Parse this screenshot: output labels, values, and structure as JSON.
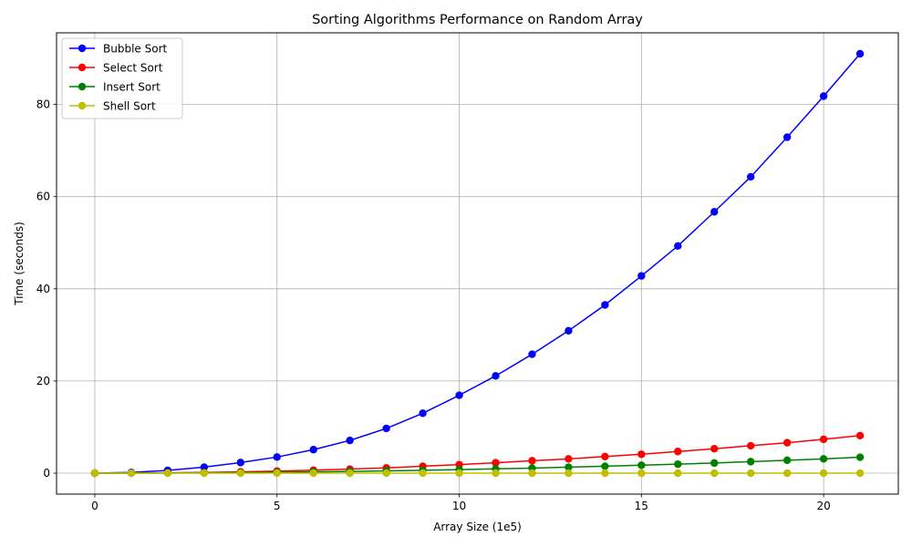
{
  "chart_data": {
    "type": "line",
    "title": "Sorting Algorithms Performance on Random Array",
    "xlabel": "Array Size (1e5)",
    "ylabel": "Time (seconds)",
    "xlim": [
      -1.05,
      22.05
    ],
    "ylim": [
      -4.55,
      95.55
    ],
    "xticks": [
      0,
      5,
      10,
      15,
      20
    ],
    "yticks": [
      0,
      20,
      40,
      60,
      80
    ],
    "grid": true,
    "legend_position": "top-left",
    "x": [
      0,
      1,
      2,
      3,
      4,
      5,
      6,
      7,
      8,
      9,
      10,
      11,
      12,
      13,
      14,
      15,
      16,
      17,
      18,
      19,
      20,
      21
    ],
    "series": [
      {
        "name": "Bubble Sort",
        "color": "#0000ff",
        "values": [
          0,
          0.15,
          0.6,
          1.3,
          2.3,
          3.5,
          5.1,
          7.1,
          9.7,
          13.0,
          16.9,
          21.1,
          25.8,
          30.9,
          36.5,
          42.8,
          49.3,
          56.7,
          64.3,
          72.9,
          81.8,
          91.0
        ]
      },
      {
        "name": "Select Sort",
        "color": "#ff0000",
        "values": [
          0,
          0.02,
          0.07,
          0.15,
          0.28,
          0.45,
          0.65,
          0.88,
          1.15,
          1.5,
          1.85,
          2.25,
          2.7,
          3.1,
          3.6,
          4.1,
          4.7,
          5.3,
          5.95,
          6.6,
          7.35,
          8.15
        ]
      },
      {
        "name": "Insert Sort",
        "color": "#008000",
        "values": [
          0,
          0.01,
          0.03,
          0.07,
          0.12,
          0.2,
          0.28,
          0.38,
          0.5,
          0.63,
          0.77,
          0.93,
          1.1,
          1.3,
          1.5,
          1.72,
          1.95,
          2.2,
          2.5,
          2.8,
          3.1,
          3.45
        ]
      },
      {
        "name": "Shell Sort",
        "color": "#bfbf00",
        "values": [
          0,
          0,
          0,
          0,
          0,
          0,
          0,
          0,
          0,
          0,
          0,
          0,
          0,
          0,
          0,
          0,
          0,
          0,
          0,
          0,
          0,
          0
        ]
      }
    ]
  }
}
